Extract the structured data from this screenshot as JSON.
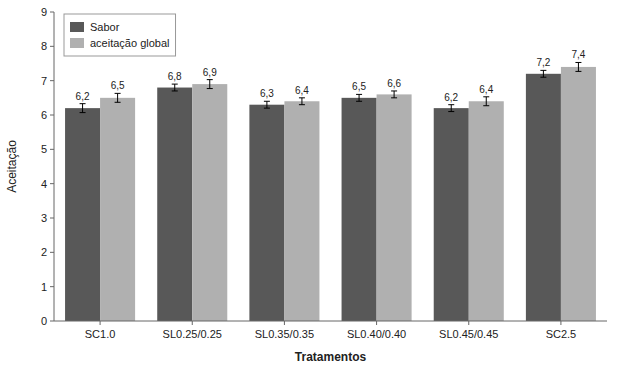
{
  "chart_data": {
    "type": "bar",
    "categories": [
      "SC1.0",
      "SL0.25/0.25",
      "SL0.35/0.35",
      "SL0.40/0.40",
      "SL0.45/0.45",
      "SC2.5"
    ],
    "series": [
      {
        "name": "Sabor",
        "color": "#585858",
        "values": [
          6.2,
          6.8,
          6.3,
          6.5,
          6.2,
          7.2
        ],
        "errors": [
          0.13,
          0.1,
          0.1,
          0.1,
          0.1,
          0.1
        ],
        "value_labels": [
          "6,2",
          "6,8",
          "6,3",
          "6,5",
          "6,2",
          "7,2"
        ]
      },
      {
        "name": "aceitação global",
        "color": "#b0b0b0",
        "values": [
          6.5,
          6.9,
          6.4,
          6.6,
          6.4,
          7.4
        ],
        "errors": [
          0.13,
          0.13,
          0.1,
          0.1,
          0.13,
          0.13
        ],
        "value_labels": [
          "6,5",
          "6,9",
          "6,4",
          "6,6",
          "6,4",
          "7,4"
        ]
      }
    ],
    "xlabel": "Tratamentos",
    "ylabel": "Aceitação",
    "ylim": [
      0,
      9
    ],
    "yticks": [
      0,
      1,
      2,
      3,
      4,
      5,
      6,
      7,
      8,
      9
    ],
    "legend": "upper left",
    "data_labels": true,
    "grid": false
  }
}
